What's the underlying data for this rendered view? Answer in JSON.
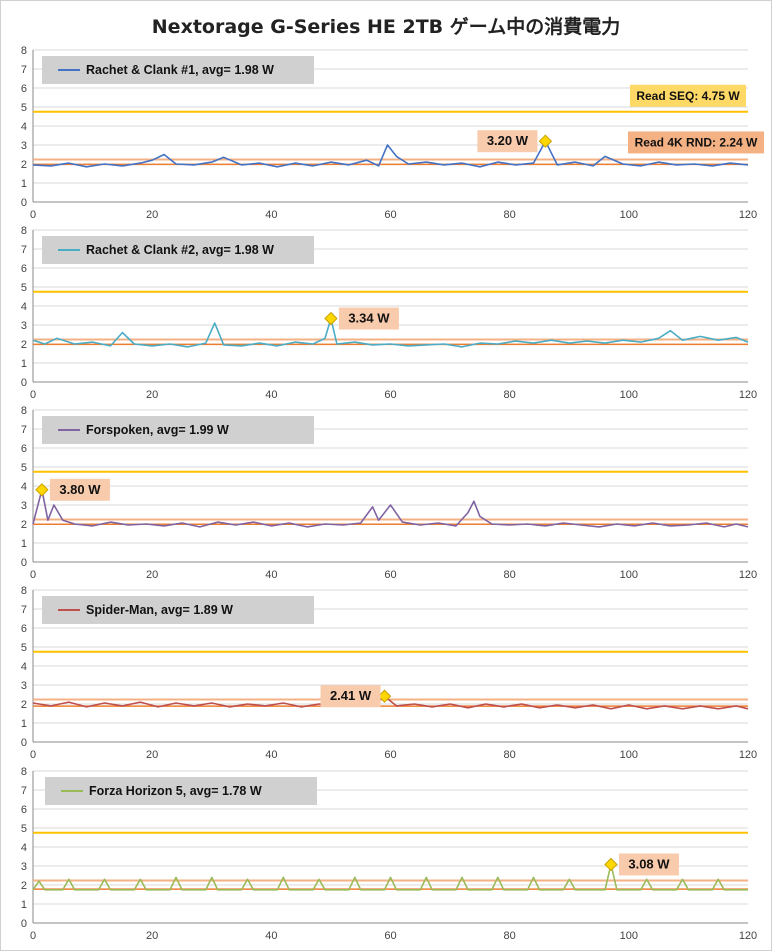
{
  "title": "Nextorage G-Series HE 2TB ゲーム中の消費電力",
  "reference_lines": {
    "read_seq": {
      "label": "Read SEQ:",
      "value_label": "4.75 W",
      "value": 4.75,
      "color": "#ffc000"
    },
    "read_4k": {
      "label": "Read 4K RND:",
      "value_label": "2.24 W",
      "value": 2.24,
      "color": "#f4b183"
    }
  },
  "chart_data": [
    {
      "type": "line",
      "title": "Rachet & Clank #1",
      "legend_name": "Rachet & Clank #1,",
      "avg_label": "avg=",
      "avg_value": "1.98 W",
      "avg": 1.98,
      "color": "#4472c4",
      "xlim": [
        0,
        120
      ],
      "ylim": [
        0,
        8
      ],
      "x_ticks": [
        "0",
        "20",
        "40",
        "60",
        "80",
        "100",
        "120"
      ],
      "y_ticks": [
        "0",
        "1",
        "2",
        "3",
        "4",
        "5",
        "6",
        "7",
        "8"
      ],
      "peak": {
        "x": 86,
        "y": 3.2,
        "label": "3.20 W"
      },
      "show_ref_labels": true,
      "grid": "horizontal",
      "points": [
        [
          0,
          1.95
        ],
        [
          3,
          1.9
        ],
        [
          6,
          2.05
        ],
        [
          9,
          1.85
        ],
        [
          12,
          2.0
        ],
        [
          15,
          1.9
        ],
        [
          18,
          2.05
        ],
        [
          20,
          2.2
        ],
        [
          22,
          2.5
        ],
        [
          24,
          2.0
        ],
        [
          27,
          1.95
        ],
        [
          30,
          2.1
        ],
        [
          32,
          2.35
        ],
        [
          35,
          1.95
        ],
        [
          38,
          2.05
        ],
        [
          41,
          1.85
        ],
        [
          44,
          2.05
        ],
        [
          47,
          1.9
        ],
        [
          50,
          2.1
        ],
        [
          53,
          1.95
        ],
        [
          56,
          2.2
        ],
        [
          58,
          1.9
        ],
        [
          59.5,
          3.0
        ],
        [
          61,
          2.4
        ],
        [
          63,
          2.0
        ],
        [
          66,
          2.1
        ],
        [
          69,
          1.95
        ],
        [
          72,
          2.05
        ],
        [
          75,
          1.85
        ],
        [
          78,
          2.1
        ],
        [
          81,
          1.95
        ],
        [
          84,
          2.05
        ],
        [
          86,
          3.2
        ],
        [
          88,
          1.95
        ],
        [
          91,
          2.1
        ],
        [
          94,
          1.9
        ],
        [
          96,
          2.4
        ],
        [
          99,
          2.0
        ],
        [
          102,
          1.9
        ],
        [
          105,
          2.1
        ],
        [
          108,
          1.95
        ],
        [
          111,
          2.0
        ],
        [
          114,
          1.9
        ],
        [
          117,
          2.05
        ],
        [
          120,
          1.95
        ]
      ]
    },
    {
      "type": "line",
      "title": "Rachet & Clank #2",
      "legend_name": "Rachet & Clank #2,",
      "avg_label": "avg=",
      "avg_value": "1.98 W",
      "avg": 1.98,
      "color": "#4bacc6",
      "xlim": [
        0,
        120
      ],
      "ylim": [
        0,
        8
      ],
      "x_ticks": [
        "0",
        "20",
        "40",
        "60",
        "80",
        "100",
        "120"
      ],
      "y_ticks": [
        "0",
        "1",
        "2",
        "3",
        "4",
        "5",
        "6",
        "7",
        "8"
      ],
      "peak": {
        "x": 50,
        "y": 3.34,
        "label": "3.34 W"
      },
      "show_ref_labels": false,
      "grid": "horizontal",
      "points": [
        [
          0,
          2.2
        ],
        [
          2,
          2.0
        ],
        [
          4,
          2.3
        ],
        [
          7,
          2.0
        ],
        [
          10,
          2.1
        ],
        [
          13,
          1.9
        ],
        [
          15,
          2.6
        ],
        [
          17,
          2.0
        ],
        [
          20,
          1.9
        ],
        [
          23,
          2.0
        ],
        [
          26,
          1.85
        ],
        [
          29,
          2.05
        ],
        [
          30.5,
          3.1
        ],
        [
          32,
          1.95
        ],
        [
          35,
          1.9
        ],
        [
          38,
          2.05
        ],
        [
          41,
          1.9
        ],
        [
          44,
          2.1
        ],
        [
          47,
          2.0
        ],
        [
          49,
          2.3
        ],
        [
          50,
          3.34
        ],
        [
          51,
          2.0
        ],
        [
          54,
          2.1
        ],
        [
          57,
          1.95
        ],
        [
          60,
          2.0
        ],
        [
          63,
          1.9
        ],
        [
          66,
          1.95
        ],
        [
          69,
          2.0
        ],
        [
          72,
          1.85
        ],
        [
          75,
          2.05
        ],
        [
          78,
          2.0
        ],
        [
          81,
          2.15
        ],
        [
          84,
          2.05
        ],
        [
          87,
          2.2
        ],
        [
          90,
          2.05
        ],
        [
          93,
          2.15
        ],
        [
          96,
          2.05
        ],
        [
          99,
          2.2
        ],
        [
          102,
          2.1
        ],
        [
          105,
          2.3
        ],
        [
          107,
          2.7
        ],
        [
          109,
          2.2
        ],
        [
          112,
          2.4
        ],
        [
          115,
          2.2
        ],
        [
          118,
          2.35
        ],
        [
          120,
          2.1
        ]
      ]
    },
    {
      "type": "line",
      "title": "Forspoken",
      "legend_name": "Forspoken,",
      "avg_label": "avg=",
      "avg_value": "1.99 W",
      "avg": 1.99,
      "color": "#8064a2",
      "xlim": [
        0,
        120
      ],
      "ylim": [
        0,
        8
      ],
      "x_ticks": [
        "0",
        "20",
        "40",
        "60",
        "80",
        "100",
        "120"
      ],
      "y_ticks": [
        "0",
        "1",
        "2",
        "3",
        "4",
        "5",
        "6",
        "7",
        "8"
      ],
      "peak": {
        "x": 1.5,
        "y": 3.8,
        "label": "3.80 W"
      },
      "show_ref_labels": false,
      "grid": "horizontal",
      "points": [
        [
          0,
          2.0
        ],
        [
          1.5,
          3.8
        ],
        [
          2.5,
          2.2
        ],
        [
          3.5,
          3.0
        ],
        [
          5,
          2.2
        ],
        [
          7,
          2.0
        ],
        [
          10,
          1.9
        ],
        [
          13,
          2.1
        ],
        [
          16,
          1.95
        ],
        [
          19,
          2.0
        ],
        [
          22,
          1.9
        ],
        [
          25,
          2.05
        ],
        [
          28,
          1.85
        ],
        [
          31,
          2.1
        ],
        [
          34,
          1.95
        ],
        [
          37,
          2.1
        ],
        [
          40,
          1.9
        ],
        [
          43,
          2.05
        ],
        [
          46,
          1.85
        ],
        [
          49,
          2.0
        ],
        [
          52,
          1.95
        ],
        [
          55,
          2.05
        ],
        [
          57,
          2.9
        ],
        [
          58,
          2.2
        ],
        [
          60,
          3.0
        ],
        [
          62,
          2.1
        ],
        [
          65,
          1.95
        ],
        [
          68,
          2.05
        ],
        [
          71,
          1.9
        ],
        [
          73,
          2.6
        ],
        [
          74,
          3.2
        ],
        [
          75,
          2.4
        ],
        [
          77,
          2.0
        ],
        [
          80,
          1.95
        ],
        [
          83,
          2.0
        ],
        [
          86,
          1.9
        ],
        [
          89,
          2.05
        ],
        [
          92,
          1.95
        ],
        [
          95,
          1.85
        ],
        [
          98,
          2.0
        ],
        [
          101,
          1.9
        ],
        [
          104,
          2.05
        ],
        [
          107,
          1.9
        ],
        [
          110,
          1.95
        ],
        [
          113,
          2.05
        ],
        [
          116,
          1.85
        ],
        [
          118,
          2.0
        ],
        [
          120,
          1.85
        ]
      ]
    },
    {
      "type": "line",
      "title": "Spider-Man",
      "legend_name": "Spider-Man,",
      "avg_label": "avg=",
      "avg_value": "1.89 W",
      "avg": 1.89,
      "color": "#c0504d",
      "xlim": [
        0,
        120
      ],
      "ylim": [
        0,
        8
      ],
      "x_ticks": [
        "0",
        "20",
        "40",
        "60",
        "80",
        "100",
        "120"
      ],
      "y_ticks": [
        "0",
        "1",
        "2",
        "3",
        "4",
        "5",
        "6",
        "7",
        "8"
      ],
      "peak": {
        "x": 59,
        "y": 2.41,
        "label": "2.41 W"
      },
      "show_ref_labels": false,
      "grid": "horizontal",
      "points": [
        [
          0,
          2.05
        ],
        [
          3,
          1.9
        ],
        [
          6,
          2.1
        ],
        [
          9,
          1.85
        ],
        [
          12,
          2.05
        ],
        [
          15,
          1.9
        ],
        [
          18,
          2.1
        ],
        [
          21,
          1.85
        ],
        [
          24,
          2.05
        ],
        [
          27,
          1.9
        ],
        [
          30,
          2.05
        ],
        [
          33,
          1.85
        ],
        [
          36,
          2.0
        ],
        [
          39,
          1.9
        ],
        [
          42,
          2.05
        ],
        [
          45,
          1.85
        ],
        [
          48,
          2.0
        ],
        [
          51,
          1.9
        ],
        [
          54,
          2.05
        ],
        [
          57,
          1.9
        ],
        [
          59,
          2.41
        ],
        [
          61,
          1.9
        ],
        [
          64,
          2.0
        ],
        [
          67,
          1.85
        ],
        [
          70,
          2.0
        ],
        [
          73,
          1.8
        ],
        [
          76,
          2.0
        ],
        [
          79,
          1.85
        ],
        [
          82,
          2.0
        ],
        [
          85,
          1.8
        ],
        [
          88,
          1.95
        ],
        [
          91,
          1.8
        ],
        [
          94,
          1.95
        ],
        [
          97,
          1.75
        ],
        [
          100,
          1.95
        ],
        [
          103,
          1.75
        ],
        [
          106,
          1.9
        ],
        [
          109,
          1.75
        ],
        [
          112,
          1.9
        ],
        [
          115,
          1.75
        ],
        [
          118,
          1.9
        ],
        [
          120,
          1.75
        ]
      ]
    },
    {
      "type": "line",
      "title": "Forza Horizon 5",
      "legend_name": "Forza Horizon 5,",
      "avg_label": "avg=",
      "avg_value": "1.78 W",
      "avg": 1.78,
      "color": "#9bbb59",
      "xlim": [
        0,
        120
      ],
      "ylim": [
        0,
        8
      ],
      "x_ticks": [
        "0",
        "20",
        "40",
        "60",
        "80",
        "100",
        "120"
      ],
      "y_ticks": [
        "0",
        "1",
        "2",
        "3",
        "4",
        "5",
        "6",
        "7",
        "8"
      ],
      "peak": {
        "x": 97,
        "y": 3.08,
        "label": "3.08 W"
      },
      "show_ref_labels": false,
      "grid": "horizontal",
      "points": [
        [
          0,
          1.75
        ],
        [
          1,
          2.2
        ],
        [
          2,
          1.75
        ],
        [
          5,
          1.75
        ],
        [
          6,
          2.3
        ],
        [
          7,
          1.75
        ],
        [
          11,
          1.75
        ],
        [
          12,
          2.3
        ],
        [
          13,
          1.75
        ],
        [
          17,
          1.75
        ],
        [
          18,
          2.3
        ],
        [
          19,
          1.75
        ],
        [
          23,
          1.75
        ],
        [
          24,
          2.4
        ],
        [
          25,
          1.75
        ],
        [
          29,
          1.75
        ],
        [
          30,
          2.4
        ],
        [
          31,
          1.75
        ],
        [
          35,
          1.75
        ],
        [
          36,
          2.3
        ],
        [
          37,
          1.75
        ],
        [
          41,
          1.75
        ],
        [
          42,
          2.4
        ],
        [
          43,
          1.75
        ],
        [
          47,
          1.75
        ],
        [
          48,
          2.3
        ],
        [
          49,
          1.75
        ],
        [
          53,
          1.75
        ],
        [
          54,
          2.4
        ],
        [
          55,
          1.75
        ],
        [
          59,
          1.75
        ],
        [
          60,
          2.4
        ],
        [
          61,
          1.75
        ],
        [
          65,
          1.75
        ],
        [
          66,
          2.4
        ],
        [
          67,
          1.75
        ],
        [
          71,
          1.75
        ],
        [
          72,
          2.4
        ],
        [
          73,
          1.75
        ],
        [
          77,
          1.75
        ],
        [
          78,
          2.4
        ],
        [
          79,
          1.75
        ],
        [
          83,
          1.75
        ],
        [
          84,
          2.4
        ],
        [
          85,
          1.75
        ],
        [
          89,
          1.75
        ],
        [
          90,
          2.3
        ],
        [
          91,
          1.75
        ],
        [
          96,
          1.75
        ],
        [
          97,
          3.08
        ],
        [
          98,
          1.75
        ],
        [
          102,
          1.75
        ],
        [
          103,
          2.3
        ],
        [
          104,
          1.75
        ],
        [
          108,
          1.75
        ],
        [
          109,
          2.3
        ],
        [
          110,
          1.75
        ],
        [
          114,
          1.75
        ],
        [
          115,
          2.3
        ],
        [
          116,
          1.75
        ],
        [
          120,
          1.75
        ]
      ]
    }
  ]
}
